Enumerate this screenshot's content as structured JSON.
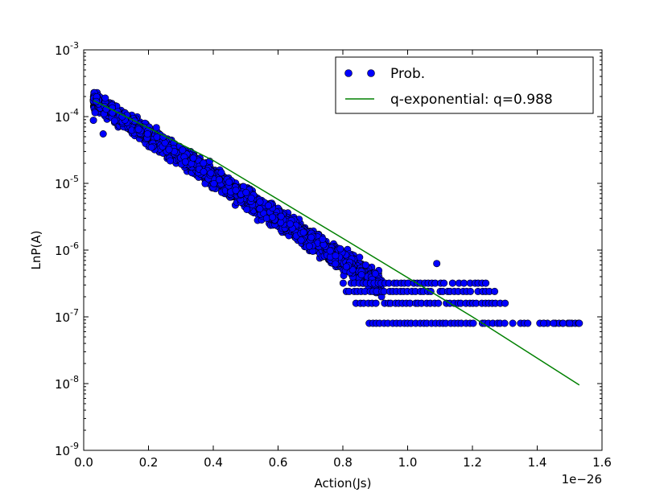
{
  "chart_data": {
    "type": "scatter",
    "xlabel": "Action(Js)",
    "ylabel": "LnP(A)",
    "x_offset_label": "1e−26",
    "xlim": [
      0.0,
      1.6
    ],
    "x_multiplier": 1e-26,
    "ylim": [
      1e-09,
      0.001
    ],
    "yscale": "log",
    "x_ticks": [
      "0.0",
      "0.2",
      "0.4",
      "0.6",
      "0.8",
      "1.0",
      "1.2",
      "1.4",
      "1.6"
    ],
    "y_ticks": [
      {
        "base": "10",
        "exp": "-9"
      },
      {
        "base": "10",
        "exp": "-8"
      },
      {
        "base": "10",
        "exp": "-7"
      },
      {
        "base": "10",
        "exp": "-6"
      },
      {
        "base": "10",
        "exp": "-5"
      },
      {
        "base": "10",
        "exp": "-4"
      },
      {
        "base": "10",
        "exp": "-3"
      }
    ],
    "legend_position": "top-right",
    "legend": [
      {
        "label": "Prob.",
        "marker": "circle",
        "color": "#0000ff"
      },
      {
        "label": "q-exponential: q=0.988",
        "marker": "line",
        "color": "#008000"
      }
    ],
    "series": [
      {
        "name": "Prob.",
        "type": "scatter",
        "color": "#0000ff",
        "edgecolor": "#000000",
        "band": {
          "x_start": 0.03,
          "x_end": 0.92,
          "center_start": 0.00018,
          "center_end": 3e-07
        },
        "quantized_levels": [
          {
            "y": 3.2e-07,
            "x_from": 0.8,
            "x_to": 1.26
          },
          {
            "y": 2.4e-07,
            "x_from": 0.81,
            "x_to": 1.27
          },
          {
            "y": 1.6e-07,
            "x_from": 0.83,
            "x_to": 1.3
          },
          {
            "y": 8e-08,
            "x_from": 0.88,
            "x_to": 1.53
          }
        ],
        "outliers": [
          {
            "x": 0.03,
            "y": 8.8e-05
          },
          {
            "x": 0.06,
            "y": 5.5e-05
          },
          {
            "x": 1.09,
            "y": 6.3e-07
          },
          {
            "x": 1.42,
            "y": 8e-08
          },
          {
            "x": 1.45,
            "y": 8e-08
          },
          {
            "x": 1.48,
            "y": 8e-08
          },
          {
            "x": 1.5,
            "y": 8e-08
          },
          {
            "x": 1.53,
            "y": 8e-08
          }
        ]
      },
      {
        "name": "q-exponential: q=0.988",
        "type": "line",
        "color": "#008000",
        "x": [
          0.03,
          0.4,
          0.8,
          1.2,
          1.53
        ],
        "y": [
          0.000175,
          2.2e-05,
          1.5e-06,
          1e-07,
          9.5e-09
        ]
      }
    ]
  }
}
